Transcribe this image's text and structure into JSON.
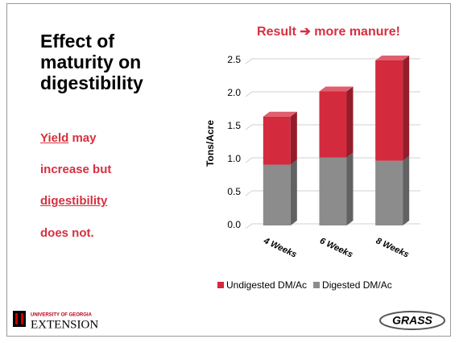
{
  "slide": {
    "title": "Effect of maturity on digestibility",
    "body": [
      {
        "underlined": "Yield",
        "rest": " may"
      },
      {
        "rest": "increase but"
      },
      {
        "underlined": "digestibility"
      },
      {
        "rest": "does not."
      }
    ],
    "logos": {
      "university": "UNIVERSITY OF GEORGIA",
      "extension": "EXTENSION",
      "grass": "GRASS"
    }
  },
  "chart_data": {
    "type": "bar",
    "stacked": true,
    "title": "Result ➔ more manure!",
    "y_label": "Tons/Acre",
    "categories": [
      "4 Weeks",
      "6 Weeks",
      "8 Weeks"
    ],
    "series": [
      {
        "name": "Undigested DM/Ac",
        "color": "#d42a3e",
        "values": [
          0.73,
          1.0,
          1.52
        ]
      },
      {
        "name": "Digested DM/Ac",
        "color": "#8c8c8c",
        "values": [
          0.92,
          1.03,
          0.98
        ]
      }
    ],
    "ylim": [
      0,
      2.5
    ],
    "yticks": [
      {
        "value": 0,
        "label": "0.0"
      },
      {
        "value": 0.5,
        "label": "0.5"
      },
      {
        "value": 1,
        "label": "1.0"
      },
      {
        "value": 1.5,
        "label": "1.5"
      },
      {
        "value": 2,
        "label": "2.0"
      },
      {
        "value": 2.5,
        "label": "2.5"
      }
    ],
    "grid": true,
    "legend": "bottom"
  }
}
